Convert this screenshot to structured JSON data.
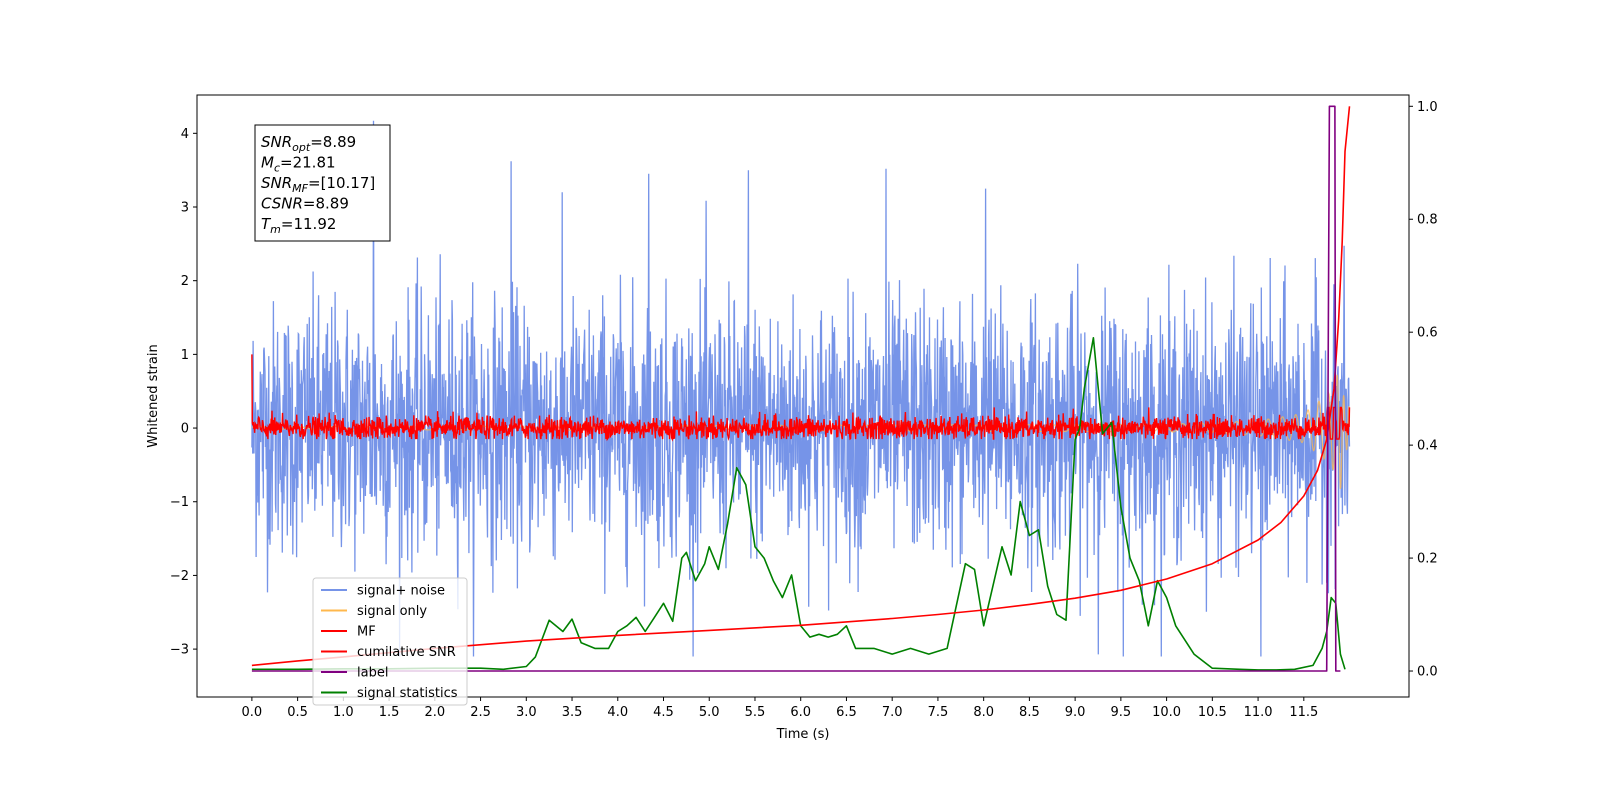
{
  "chart_data": {
    "type": "line",
    "title": "",
    "xlabel": "Time (s)",
    "ylabel": "Whitened strain",
    "ylabel_right": "",
    "xlim": [
      -0.6,
      12.65
    ],
    "ylim": [
      -3.65,
      4.52
    ],
    "ylim_right": [
      -0.046,
      1.02
    ],
    "x_ticks": [
      "0.0",
      "0.5",
      "1.0",
      "1.5",
      "2.0",
      "2.5",
      "3.0",
      "3.5",
      "4.0",
      "4.5",
      "5.0",
      "5.5",
      "6.0",
      "6.5",
      "7.0",
      "7.5",
      "8.0",
      "8.5",
      "9.0",
      "9.5",
      "10.0",
      "10.5",
      "11.0",
      "11.5"
    ],
    "y_ticks": [
      "4",
      "3",
      "2",
      "1",
      "0",
      "−1",
      "−2",
      "−3"
    ],
    "y_ticks_right": [
      "1.0",
      "0.8",
      "0.6",
      "0.4",
      "0.2",
      "0.0"
    ],
    "grid": false,
    "legend_position": "lower-left",
    "annotation_box": {
      "lines": [
        {
          "symbol": "SNR",
          "sub": "opt",
          "value": "=8.89"
        },
        {
          "symbol": "M",
          "sub": "c",
          "value": "=21.81"
        },
        {
          "symbol": "SNR",
          "sub": "MF",
          "value": "=[10.17]"
        },
        {
          "symbol": "CSNR",
          "sub": "",
          "value": "=8.89"
        },
        {
          "symbol": "T",
          "sub": "m",
          "value": "=11.92"
        }
      ]
    },
    "series": [
      {
        "name": "signal+ noise",
        "color": "#7694e8",
        "axis": "left",
        "style": "noise",
        "x_range": [
          0.0,
          12.0
        ],
        "amplitude_typical": 1.2,
        "peak_values": [
          4.17,
          3.62,
          3.45,
          3.5,
          3.52,
          3.25,
          -3.2,
          -3.25
        ]
      },
      {
        "name": "signal only",
        "color": "#ffb84d",
        "axis": "left",
        "style": "chirp",
        "x_range": [
          0.0,
          12.0
        ],
        "envelope": [
          [
            0.0,
            0.02
          ],
          [
            10.0,
            0.05
          ],
          [
            11.0,
            0.1
          ],
          [
            11.5,
            0.2
          ],
          [
            11.8,
            0.5
          ],
          [
            11.9,
            0.85
          ],
          [
            11.95,
            0.3
          ]
        ]
      },
      {
        "name": "MF",
        "color": "#ff0000",
        "axis": "left",
        "style": "noise",
        "x_range": [
          0.0,
          12.0
        ],
        "amplitude_typical": 0.12,
        "start_value": 1.0
      },
      {
        "name": "cumilative SNR",
        "color": "#ff0000",
        "axis": "right",
        "x": [
          0.0,
          0.5,
          1.0,
          2.0,
          3.0,
          4.0,
          5.0,
          6.0,
          7.0,
          7.5,
          8.0,
          8.5,
          9.0,
          9.5,
          10.0,
          10.5,
          11.0,
          11.25,
          11.5,
          11.65,
          11.75,
          11.83,
          11.88,
          11.92,
          11.95,
          12.0
        ],
        "values": [
          0.01,
          0.018,
          0.025,
          0.04,
          0.053,
          0.063,
          0.072,
          0.081,
          0.093,
          0.1,
          0.108,
          0.118,
          0.129,
          0.143,
          0.163,
          0.19,
          0.232,
          0.263,
          0.31,
          0.355,
          0.41,
          0.5,
          0.62,
          0.76,
          0.92,
          1.0
        ]
      },
      {
        "name": "label",
        "color": "#800080",
        "axis": "right",
        "x": [
          0.0,
          11.75,
          11.78,
          11.84,
          11.85,
          11.9
        ],
        "values": [
          0.0,
          0.0,
          1.0,
          1.0,
          0.0,
          0.0
        ]
      },
      {
        "name": "signal statistics",
        "color": "#008000",
        "axis": "right",
        "x": [
          0.0,
          0.5,
          1.0,
          1.5,
          2.0,
          2.5,
          2.75,
          3.0,
          3.1,
          3.25,
          3.4,
          3.5,
          3.6,
          3.75,
          3.9,
          4.0,
          4.1,
          4.2,
          4.3,
          4.4,
          4.5,
          4.6,
          4.7,
          4.75,
          4.85,
          4.95,
          5.0,
          5.1,
          5.2,
          5.3,
          5.4,
          5.5,
          5.6,
          5.7,
          5.8,
          5.9,
          6.0,
          6.1,
          6.2,
          6.3,
          6.4,
          6.5,
          6.6,
          6.8,
          7.0,
          7.2,
          7.4,
          7.6,
          7.8,
          7.9,
          8.0,
          8.2,
          8.3,
          8.4,
          8.5,
          8.6,
          8.7,
          8.8,
          8.9,
          9.0,
          9.05,
          9.1,
          9.2,
          9.3,
          9.4,
          9.5,
          9.6,
          9.7,
          9.8,
          9.9,
          10.0,
          10.1,
          10.3,
          10.5,
          10.8,
          11.0,
          11.2,
          11.4,
          11.6,
          11.7,
          11.75,
          11.8,
          11.85,
          11.9,
          11.95
        ],
        "values": [
          0.003,
          0.003,
          0.004,
          0.004,
          0.005,
          0.005,
          0.003,
          0.008,
          0.025,
          0.09,
          0.07,
          0.092,
          0.05,
          0.04,
          0.04,
          0.07,
          0.08,
          0.095,
          0.07,
          0.095,
          0.12,
          0.088,
          0.2,
          0.21,
          0.16,
          0.19,
          0.22,
          0.18,
          0.26,
          0.36,
          0.33,
          0.22,
          0.2,
          0.16,
          0.13,
          0.17,
          0.08,
          0.06,
          0.065,
          0.06,
          0.065,
          0.08,
          0.04,
          0.04,
          0.03,
          0.04,
          0.03,
          0.04,
          0.19,
          0.18,
          0.08,
          0.22,
          0.17,
          0.3,
          0.24,
          0.25,
          0.15,
          0.1,
          0.09,
          0.41,
          0.43,
          0.5,
          0.59,
          0.42,
          0.44,
          0.29,
          0.2,
          0.16,
          0.08,
          0.16,
          0.13,
          0.08,
          0.03,
          0.005,
          0.003,
          0.002,
          0.002,
          0.003,
          0.01,
          0.04,
          0.07,
          0.13,
          0.12,
          0.03,
          0.003
        ]
      }
    ]
  }
}
